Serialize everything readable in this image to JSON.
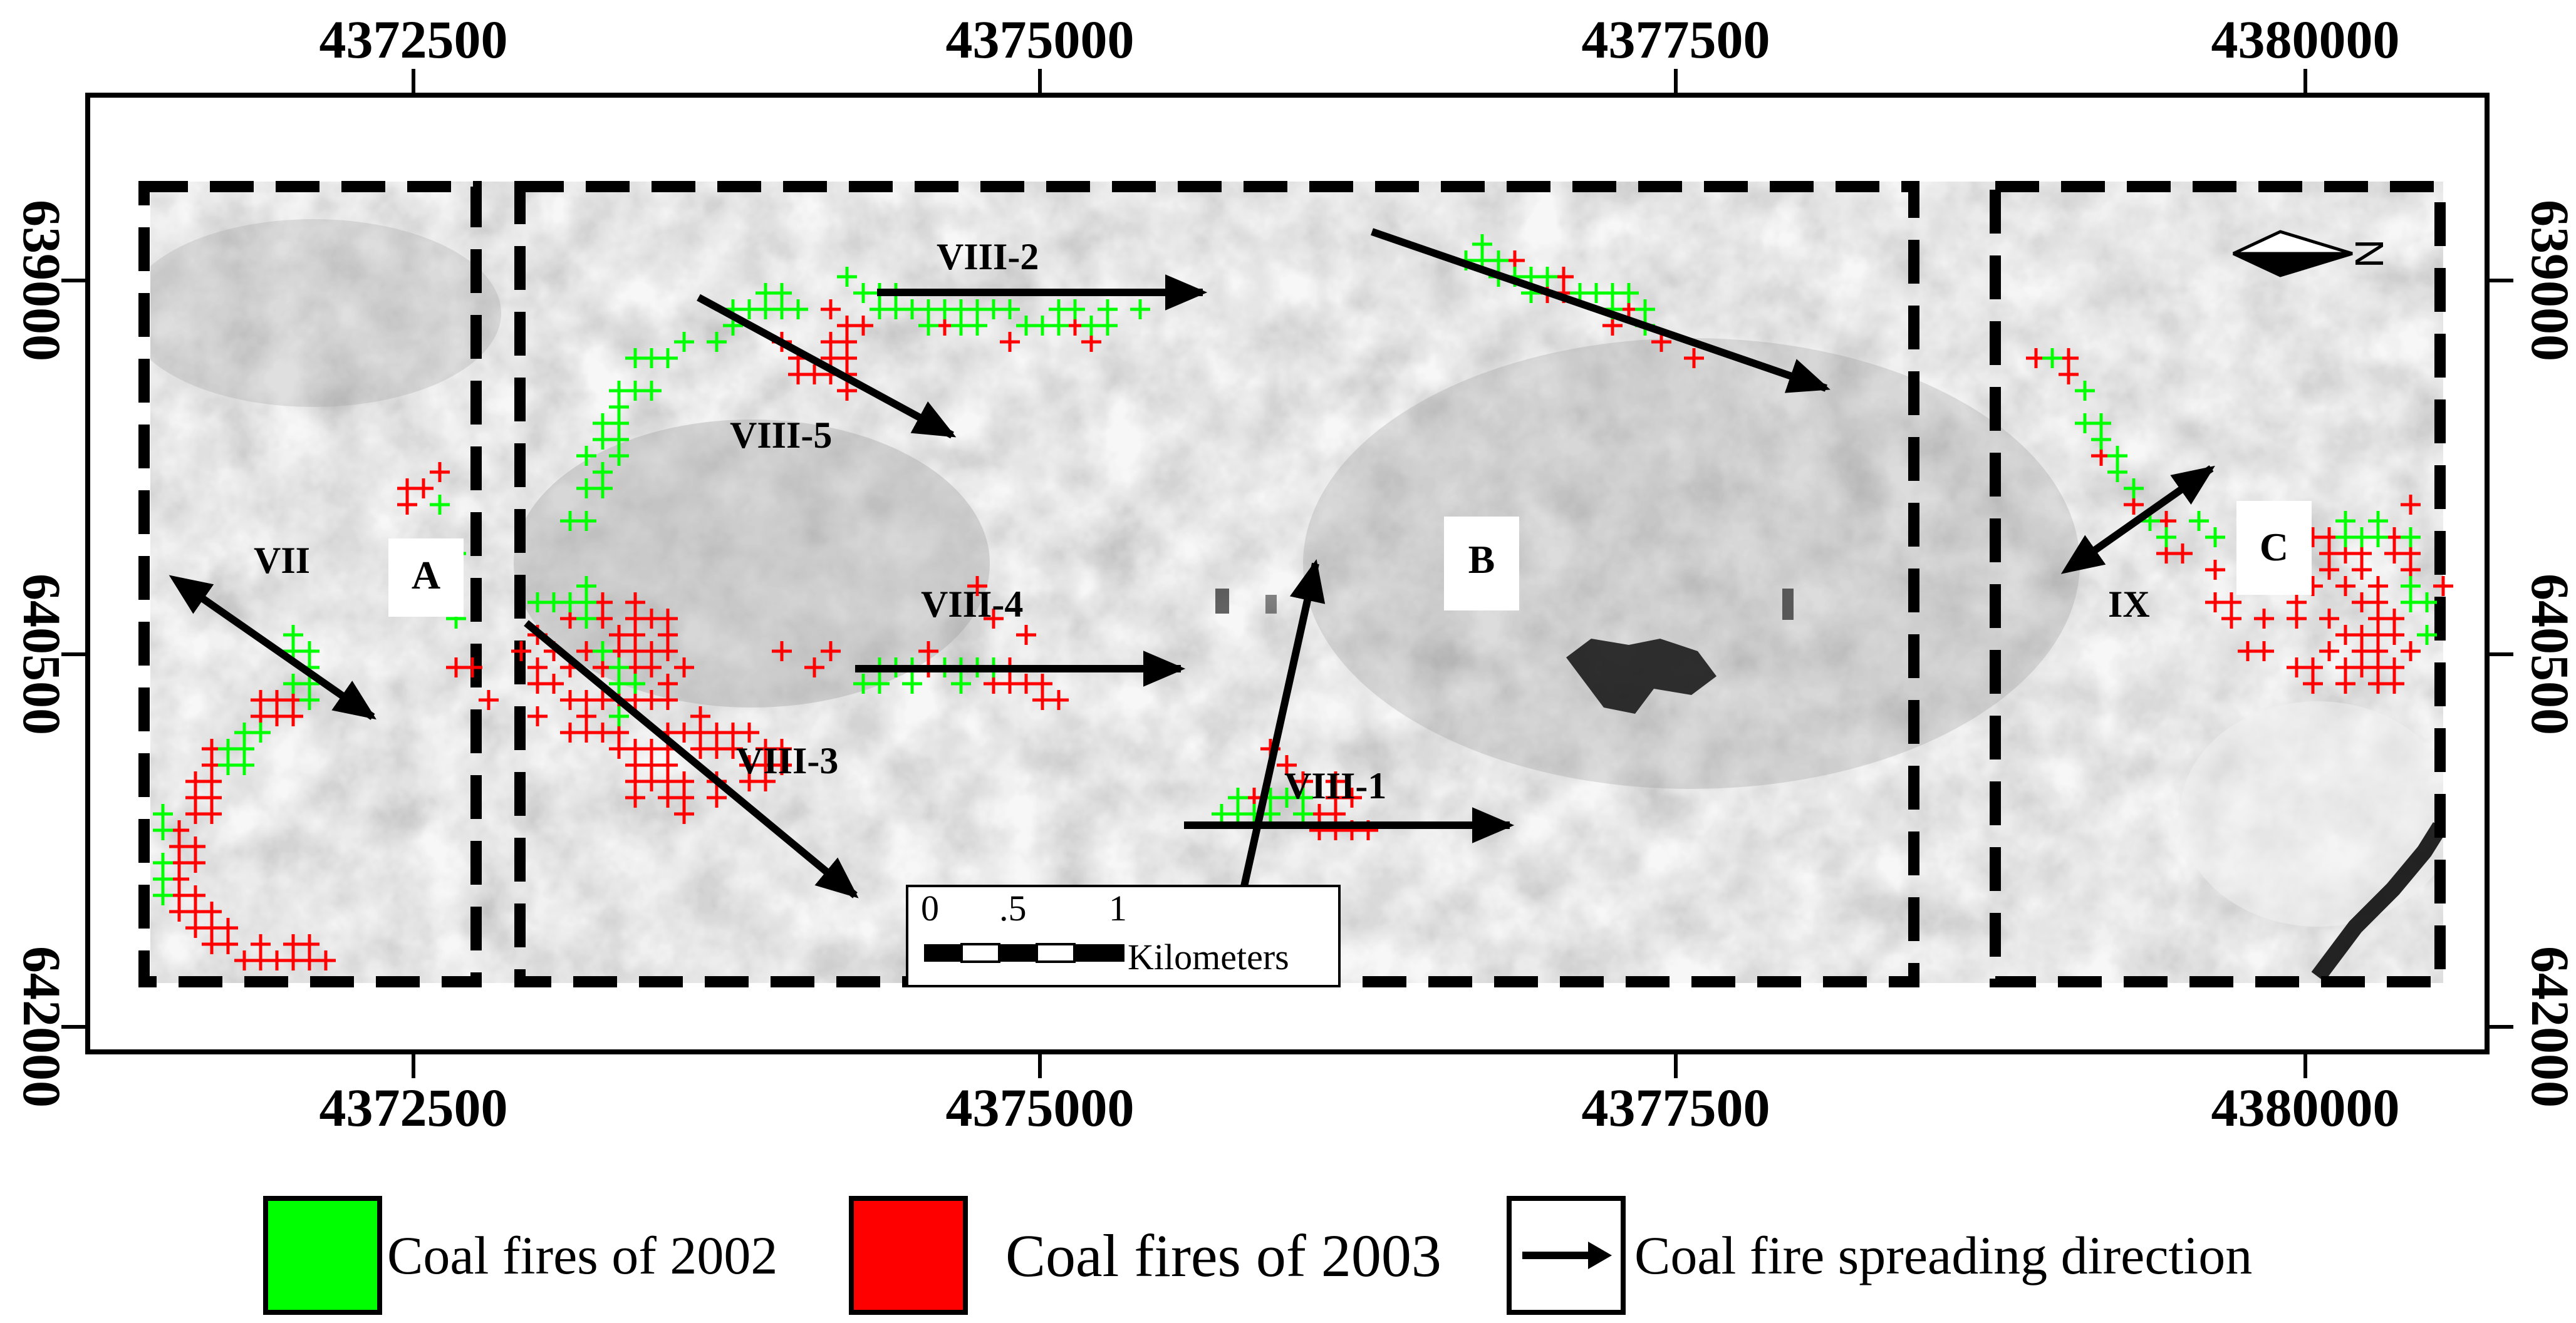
{
  "map": {
    "top_axis_labels": [
      "4372500",
      "4375000",
      "4377500",
      "4380000"
    ],
    "bottom_axis_labels": [
      "4372500",
      "4375000",
      "4377500",
      "4380000"
    ],
    "left_axis_labels": [
      "639000",
      "640500",
      "642000"
    ],
    "right_axis_labels": [
      "639000",
      "640500",
      "642000"
    ],
    "zone_labels": [
      "A",
      "B",
      "C"
    ],
    "direction_labels": [
      "VII",
      "VIII-2",
      "VIII-5",
      "VIII-4",
      "VIII-3",
      "VIII-1",
      "IX"
    ],
    "north_arrow_label": "N",
    "scale_bar": {
      "ticks": [
        "0",
        ".5",
        "1"
      ],
      "unit": "Kilometers"
    }
  },
  "legend": {
    "items": [
      {
        "label": "Coal fires of 2002",
        "color": "#00ff00"
      },
      {
        "label": "Coal fires of 2003",
        "color": "#ff0000"
      },
      {
        "label": "Coal fire spreading direction",
        "icon": "arrow-icon"
      }
    ]
  },
  "colors": {
    "fire_2002": "#00ff00",
    "fire_2003": "#ff0000",
    "frame": "#000000"
  }
}
